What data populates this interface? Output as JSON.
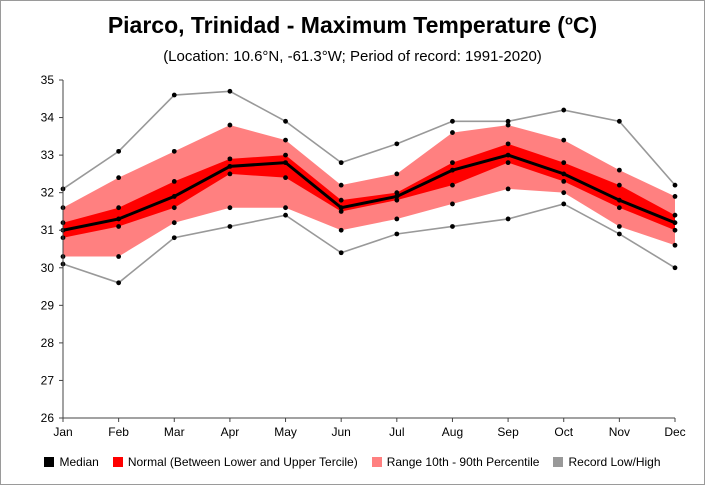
{
  "header": {
    "title_main": "Piarco, Trinidad - Maximum Temperature (",
    "title_sup": "o",
    "title_end": "C)",
    "subtitle": "(Location: 10.6°N, -61.3°W; Period of record: 1991-2020)"
  },
  "legend": {
    "median": "Median",
    "normal": "Normal (Between Lower and Upper Tercile)",
    "range": "Range 10th - 90th Percentile",
    "record": "Record Low/High"
  },
  "colors": {
    "median": "#000000",
    "normal": "#ff0000",
    "range": "#ff8080",
    "record": "#999999"
  },
  "chart_data": {
    "type": "area",
    "categories": [
      "Jan",
      "Feb",
      "Mar",
      "Apr",
      "May",
      "Jun",
      "Jul",
      "Aug",
      "Sep",
      "Oct",
      "Nov",
      "Dec"
    ],
    "ylim": [
      26,
      35
    ],
    "yticks": [
      26,
      27,
      28,
      29,
      30,
      31,
      32,
      33,
      34,
      35
    ],
    "grid": false,
    "legend_position": "bottom",
    "series": [
      {
        "name": "Record Low/High",
        "role": "record_high",
        "values": [
          32.1,
          33.1,
          34.6,
          34.7,
          33.9,
          32.8,
          33.3,
          33.9,
          33.9,
          34.2,
          33.9,
          32.2
        ]
      },
      {
        "name": "Range 10th - 90th Percentile",
        "role": "p90",
        "values": [
          31.6,
          32.4,
          33.1,
          33.8,
          33.4,
          32.2,
          32.5,
          33.6,
          33.8,
          33.4,
          32.6,
          31.9
        ]
      },
      {
        "name": "Normal (Between Lower and Upper Tercile)",
        "role": "upper_tercile",
        "values": [
          31.2,
          31.6,
          32.3,
          32.9,
          33.0,
          31.8,
          32.0,
          32.8,
          33.3,
          32.8,
          32.2,
          31.4
        ]
      },
      {
        "name": "Median",
        "role": "median",
        "values": [
          31.0,
          31.3,
          31.9,
          32.7,
          32.8,
          31.6,
          31.9,
          32.6,
          33.0,
          32.5,
          31.8,
          31.2
        ]
      },
      {
        "name": "Normal (Between Lower and Upper Tercile)",
        "role": "lower_tercile",
        "values": [
          30.8,
          31.1,
          31.6,
          32.5,
          32.4,
          31.5,
          31.8,
          32.2,
          32.8,
          32.3,
          31.6,
          31.0
        ]
      },
      {
        "name": "Range 10th - 90th Percentile",
        "role": "p10",
        "values": [
          30.3,
          30.3,
          31.2,
          31.6,
          31.6,
          31.0,
          31.3,
          31.7,
          32.1,
          32.0,
          31.1,
          30.6
        ]
      },
      {
        "name": "Record Low/High",
        "role": "record_low",
        "values": [
          30.1,
          29.6,
          30.8,
          31.1,
          31.4,
          30.4,
          30.9,
          31.1,
          31.3,
          31.7,
          30.9,
          30.0
        ]
      }
    ]
  }
}
